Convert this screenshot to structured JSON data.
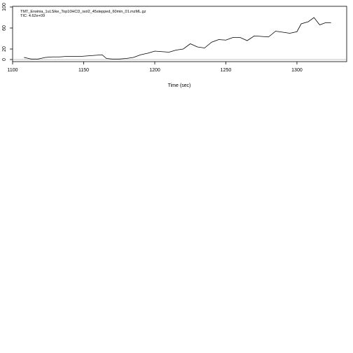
{
  "chart_data": {
    "type": "line",
    "annotations": {
      "file": "TMT_Erwinia_1uLSike_Top10HCD_isol2_45stepped_60min_01.mzML.gz",
      "tic": "TIC: 4.62e+09"
    },
    "xlabel": "Time (sec)",
    "ylabel": "",
    "xlim": [
      1100,
      1335
    ],
    "ylim": [
      0,
      100
    ],
    "x_ticks": [
      1100,
      1150,
      1200,
      1250,
      1300
    ],
    "y_ticks": [
      0,
      20,
      60,
      100
    ],
    "grid": false,
    "series": [
      {
        "x": [
          1108,
          1113,
          1118,
          1123,
          1128,
          1133,
          1138,
          1143,
          1148,
          1153,
          1158,
          1163,
          1166,
          1170,
          1175,
          1180,
          1185,
          1190,
          1195,
          1200,
          1205,
          1210,
          1215,
          1220,
          1225,
          1230,
          1235,
          1240,
          1245,
          1250,
          1255,
          1260,
          1265,
          1270,
          1275,
          1280,
          1285,
          1290,
          1295,
          1300,
          1303,
          1308,
          1312,
          1316,
          1320,
          1324
        ],
        "y": [
          4,
          1,
          1,
          4,
          5,
          5,
          6,
          6,
          6,
          7,
          8,
          9,
          2,
          1,
          1,
          2,
          4,
          9,
          12,
          16,
          15,
          14,
          18,
          20,
          30,
          24,
          22,
          33,
          38,
          37,
          42,
          42,
          36,
          45,
          44,
          43,
          54,
          52,
          50,
          53,
          68,
          72,
          80,
          66,
          70,
          70
        ]
      }
    ]
  }
}
